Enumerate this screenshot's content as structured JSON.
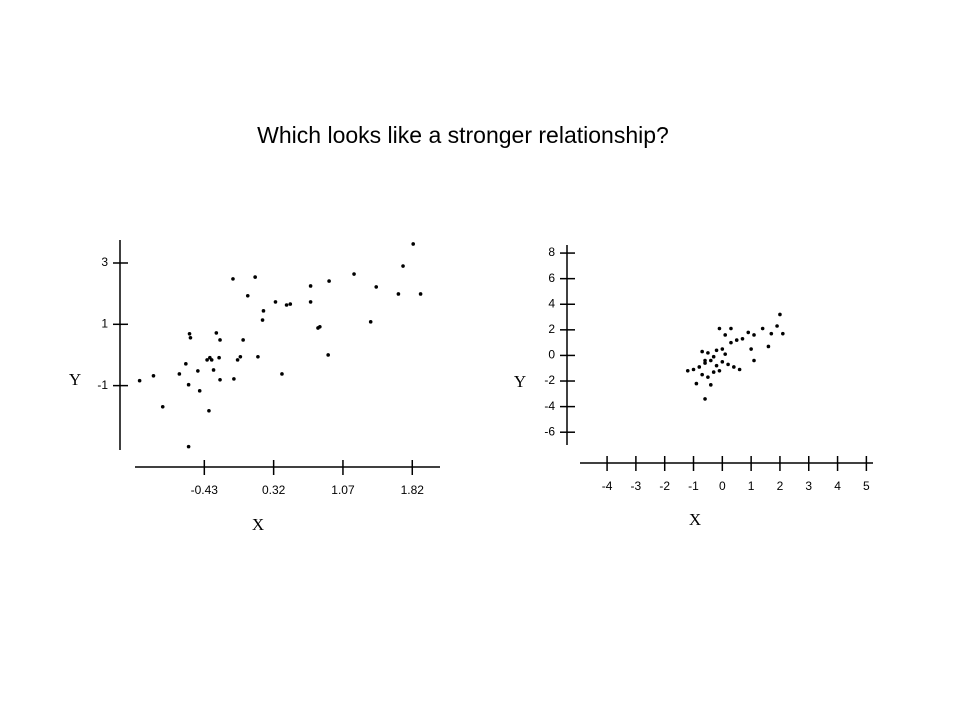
{
  "title": "Which looks like a stronger relationship?",
  "chart_data": [
    {
      "type": "scatter",
      "x_label": "X",
      "y_label": "Y",
      "color": "#000000",
      "xlim": [
        -1.18,
        2.12
      ],
      "ylim": [
        -3.1,
        3.75
      ],
      "xticks": [
        -0.43,
        0.32,
        1.07,
        1.82
      ],
      "yticks": [
        3,
        1,
        -1
      ],
      "x": [
        -1.13,
        -0.98,
        -0.88,
        -0.7,
        -0.63,
        -0.6,
        -0.6,
        -0.59,
        -0.58,
        -0.5,
        -0.48,
        -0.4,
        -0.38,
        -0.37,
        -0.35,
        -0.33,
        -0.3,
        -0.27,
        -0.26,
        -0.26,
        -0.12,
        -0.11,
        -0.07,
        -0.04,
        -0.01,
        0.04,
        0.12,
        0.15,
        0.2,
        0.21,
        0.34,
        0.41,
        0.46,
        0.5,
        0.72,
        0.72,
        0.8,
        0.82,
        0.91,
        0.92,
        1.19,
        1.37,
        1.43,
        1.67,
        1.72,
        1.83,
        1.91
      ],
      "y": [
        -0.84,
        -0.68,
        -1.69,
        -0.62,
        -0.29,
        -2.99,
        -0.97,
        0.69,
        0.56,
        -0.52,
        -1.17,
        -0.16,
        -1.82,
        -0.09,
        -0.16,
        -0.49,
        0.72,
        -0.09,
        0.49,
        -0.81,
        2.48,
        -0.78,
        -0.16,
        -0.06,
        0.49,
        1.93,
        2.54,
        -0.06,
        1.14,
        1.44,
        1.73,
        -0.62,
        1.63,
        1.66,
        2.25,
        1.73,
        0.88,
        0.92,
        0.0,
        2.41,
        2.64,
        1.08,
        2.22,
        1.99,
        2.9,
        3.62,
        1.99
      ]
    },
    {
      "type": "scatter",
      "x_label": "X",
      "y_label": "Y",
      "color": "#000000",
      "xlim": [
        -4.94,
        5.23
      ],
      "ylim": [
        -7.0,
        8.63
      ],
      "xticks": [
        -4,
        -3,
        -2,
        -1,
        0,
        1,
        2,
        3,
        4,
        5
      ],
      "yticks": [
        8,
        6,
        4,
        2,
        0,
        -2,
        -4,
        -6
      ],
      "x": [
        -1.2,
        -1.0,
        -0.9,
        -0.8,
        -0.7,
        -0.7,
        -0.6,
        -0.6,
        -0.5,
        -0.5,
        -0.4,
        -0.4,
        -0.3,
        -0.3,
        -0.2,
        -0.2,
        -0.1,
        -0.1,
        0.0,
        0.1,
        0.1,
        0.2,
        0.3,
        0.3,
        0.5,
        0.6,
        0.7,
        0.9,
        1.0,
        1.1,
        1.1,
        1.4,
        1.6,
        1.7,
        1.9,
        2.0,
        2.1,
        -0.6,
        0.0,
        0.4
      ],
      "y": [
        -1.2,
        -1.1,
        -2.2,
        -0.9,
        -1.5,
        0.3,
        -3.4,
        -0.6,
        0.2,
        -1.7,
        -0.4,
        -2.3,
        -0.1,
        -1.3,
        0.4,
        -0.8,
        2.1,
        -1.2,
        -0.5,
        0.1,
        1.6,
        -0.7,
        2.1,
        1.0,
        1.2,
        -1.1,
        1.3,
        1.8,
        0.5,
        1.6,
        -0.4,
        2.1,
        0.7,
        1.7,
        2.3,
        3.2,
        1.7,
        -0.4,
        0.5,
        -0.9
      ]
    }
  ]
}
